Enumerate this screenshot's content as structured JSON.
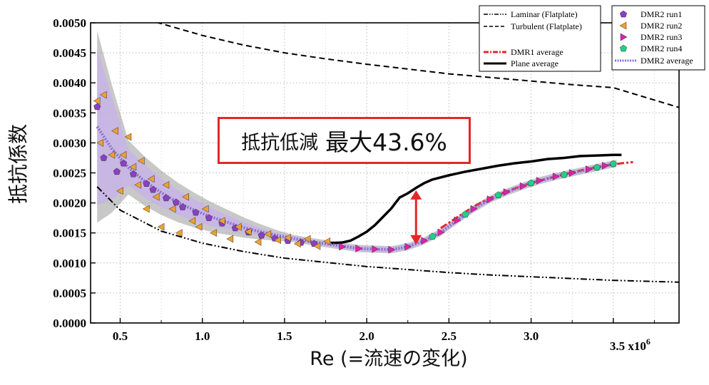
{
  "chart_data": {
    "type": "scatter",
    "xlabel": "Re (=流速の変化)",
    "ylabel": "抵抗係数",
    "x_tick_labels": [
      "0.5",
      "1.0",
      "1.5",
      "2.0",
      "2.5",
      "3.0",
      "3.5 x10"
    ],
    "x_multiplier_exponent": "6",
    "y_tick_labels": [
      "0.0000",
      "0.0005",
      "0.0010",
      "0.0015",
      "0.0020",
      "0.0025",
      "0.0030",
      "0.0035",
      "0.0040",
      "0.0045",
      "0.0050"
    ],
    "xlim": [
      0.32,
      3.9
    ],
    "ylim": [
      0.0,
      0.005
    ],
    "grid": true,
    "annotation": {
      "text_a": "抵抗低減",
      "text_b": "最大43.6%",
      "arrow_x": 2.3,
      "arrow_y_from": 0.00221,
      "arrow_y_to": 0.00131,
      "color": "#e4272a"
    },
    "legend_left": {
      "placement": "top-right",
      "entries": [
        "Laminar (Flatplate)",
        "Turbulent (Flatplate)",
        "DMR1 average",
        "Plane average"
      ]
    },
    "legend_right": {
      "placement": "top-right",
      "entries": [
        "DMR2 run1",
        "DMR2 run2",
        "DMR2 run3",
        "DMR2 run4",
        "DMR2 average"
      ]
    },
    "series": [
      {
        "name": "Laminar (Flatplate)",
        "kind": "line",
        "style": "dash-dot-dot",
        "color": "#000000",
        "x": [
          0.36,
          0.5,
          0.75,
          1.0,
          1.25,
          1.5,
          1.75,
          2.0,
          2.25,
          2.5,
          2.75,
          3.0,
          3.25,
          3.5,
          3.9
        ],
        "y": [
          0.00227,
          0.00188,
          0.00153,
          0.00133,
          0.00119,
          0.00108,
          0.00101,
          0.00094,
          0.00089,
          0.00084,
          0.0008,
          0.00077,
          0.00074,
          0.00071,
          0.00068
        ]
      },
      {
        "name": "Turbulent (Flatplate)",
        "kind": "line",
        "style": "dashed",
        "color": "#000000",
        "x": [
          0.72,
          1.0,
          1.25,
          1.5,
          1.75,
          2.0,
          2.25,
          2.5,
          2.75,
          3.0,
          3.25,
          3.5,
          3.9
        ],
        "y": [
          0.00501,
          0.00479,
          0.00463,
          0.0045,
          0.0044,
          0.00431,
          0.00423,
          0.00415,
          0.00409,
          0.00403,
          0.00397,
          0.00392,
          0.00359
        ]
      },
      {
        "name": "DMR1 average",
        "kind": "line",
        "style": "dash-dot",
        "color": "#e4272a",
        "x": [
          2.45,
          2.55,
          2.65,
          2.75,
          2.85,
          2.95,
          3.05,
          3.15,
          3.25,
          3.35,
          3.45,
          3.55,
          3.62
        ],
        "y": [
          0.00158,
          0.00176,
          0.00194,
          0.00208,
          0.00219,
          0.00229,
          0.00237,
          0.00244,
          0.00251,
          0.00257,
          0.00262,
          0.00266,
          0.00268
        ]
      },
      {
        "name": "Plane average",
        "kind": "line",
        "style": "solid",
        "color": "#000000",
        "x": [
          1.78,
          1.85,
          1.9,
          1.95,
          2.0,
          2.05,
          2.1,
          2.15,
          2.2,
          2.25,
          2.3,
          2.35,
          2.4,
          2.5,
          2.6,
          2.7,
          2.8,
          2.9,
          3.0,
          3.1,
          3.2,
          3.3,
          3.4,
          3.5,
          3.55
        ],
        "y": [
          0.00133,
          0.00134,
          0.00137,
          0.00144,
          0.00152,
          0.00163,
          0.00177,
          0.00191,
          0.00209,
          0.00216,
          0.00225,
          0.00233,
          0.00239,
          0.00246,
          0.00252,
          0.00257,
          0.00262,
          0.00266,
          0.00269,
          0.00273,
          0.00275,
          0.00278,
          0.00279,
          0.0028,
          0.0028
        ]
      },
      {
        "name": "DMR2 average",
        "kind": "line",
        "style": "dotted-band",
        "color": "#8a6fd0",
        "x": [
          0.36,
          0.45,
          0.55,
          0.65,
          0.75,
          0.85,
          0.95,
          1.05,
          1.15,
          1.25,
          1.35,
          1.45,
          1.55,
          1.65,
          1.75,
          1.85,
          1.95,
          2.05,
          2.15,
          2.25,
          2.35,
          2.45,
          2.55,
          2.65,
          2.75,
          2.85,
          2.95,
          3.05,
          3.15,
          3.25,
          3.35,
          3.45,
          3.52
        ],
        "y": [
          0.00327,
          0.0029,
          0.00259,
          0.00236,
          0.00217,
          0.00201,
          0.00188,
          0.00177,
          0.00168,
          0.00159,
          0.00152,
          0.00146,
          0.00141,
          0.00136,
          0.00132,
          0.00128,
          0.00124,
          0.00123,
          0.00122,
          0.00127,
          0.00137,
          0.00151,
          0.00171,
          0.0019,
          0.00206,
          0.00218,
          0.00228,
          0.00237,
          0.00244,
          0.0025,
          0.00256,
          0.00262,
          0.00266
        ]
      },
      {
        "name": "DMR2 run1",
        "kind": "markers",
        "marker": "pentagon",
        "color": "#8a3fc4",
        "x": [
          0.36,
          0.4,
          0.48,
          0.52,
          0.58,
          0.66,
          0.7,
          0.78,
          0.84,
          0.88,
          0.96,
          1.04,
          1.12,
          1.2,
          1.28,
          1.36,
          1.44,
          1.52,
          1.6,
          1.68
        ],
        "y": [
          0.0036,
          0.00275,
          0.00252,
          0.00266,
          0.00248,
          0.00232,
          0.00222,
          0.00208,
          0.00201,
          0.00193,
          0.00184,
          0.00175,
          0.00166,
          0.00158,
          0.00151,
          0.00146,
          0.00141,
          0.00137,
          0.00134,
          0.00132
        ]
      },
      {
        "name": "DMR2 run2",
        "kind": "markers",
        "marker": "triangle-left",
        "color": "#f0a030",
        "x": [
          0.36,
          0.38,
          0.4,
          0.45,
          0.47,
          0.5,
          0.52,
          0.55,
          0.58,
          0.61,
          0.63,
          0.66,
          0.69,
          0.72,
          0.75,
          0.78,
          0.82,
          0.86,
          0.9,
          0.94,
          0.98,
          1.02,
          1.07,
          1.12,
          1.17,
          1.22,
          1.28,
          1.34,
          1.4,
          1.46,
          1.52,
          1.58,
          1.64,
          1.7,
          1.76
        ],
        "y": [
          0.0037,
          0.003,
          0.0038,
          0.0028,
          0.0032,
          0.0022,
          0.0028,
          0.0031,
          0.0026,
          0.0023,
          0.0027,
          0.0019,
          0.0024,
          0.0021,
          0.0016,
          0.0023,
          0.0019,
          0.0015,
          0.0021,
          0.0017,
          0.0016,
          0.0019,
          0.0015,
          0.0017,
          0.0014,
          0.0016,
          0.00152,
          0.00135,
          0.00148,
          0.00138,
          0.00142,
          0.00132,
          0.0014,
          0.00128,
          0.00136
        ]
      },
      {
        "name": "DMR2 run3",
        "kind": "markers",
        "marker": "triangle-right",
        "color": "#e020b0",
        "x": [
          1.85,
          1.95,
          2.05,
          2.15,
          2.25,
          2.35,
          2.45,
          2.55,
          2.65,
          2.75,
          2.85,
          2.95,
          3.05,
          3.15,
          3.25,
          3.35,
          3.45
        ],
        "y": [
          0.00127,
          0.00124,
          0.00123,
          0.00122,
          0.00127,
          0.00137,
          0.00151,
          0.00171,
          0.0019,
          0.00206,
          0.00218,
          0.00228,
          0.00237,
          0.00244,
          0.0025,
          0.00256,
          0.00262
        ]
      },
      {
        "name": "DMR2 run4",
        "kind": "markers",
        "marker": "pentagon",
        "color": "#20d088",
        "x": [
          2.4,
          2.6,
          2.8,
          3.0,
          3.2,
          3.4,
          3.5
        ],
        "y": [
          0.00144,
          0.00181,
          0.00213,
          0.00233,
          0.00247,
          0.00259,
          0.00265
        ]
      }
    ]
  }
}
